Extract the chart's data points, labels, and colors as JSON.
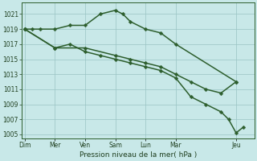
{
  "bg": "#c8e8e8",
  "grid_color": "#99c4c4",
  "lc": "#2d5e2d",
  "xlabel": "Pression niveau de la mer( hPa )",
  "ylim": [
    1004.5,
    1022.5
  ],
  "yticks": [
    1005,
    1007,
    1009,
    1011,
    1013,
    1015,
    1017,
    1019,
    1021
  ],
  "day_labels": [
    "Dim",
    "Mer",
    "Ven",
    "Sam",
    "Lun",
    "Mar",
    "Jeu"
  ],
  "day_x": [
    0,
    2,
    4,
    6,
    8,
    10,
    14
  ],
  "xlim": [
    -0.2,
    15.2
  ],
  "lines": [
    {
      "x": [
        0,
        0.5,
        1,
        2,
        3,
        4,
        5,
        6,
        6.5,
        7,
        8,
        9,
        10,
        14
      ],
      "y": [
        1019,
        1019,
        1019,
        1019,
        1019.5,
        1019.5,
        1021,
        1021.5,
        1021,
        1020,
        1019,
        1018.5,
        1017,
        1012
      ]
    },
    {
      "x": [
        0,
        2,
        4,
        6,
        7,
        8,
        9,
        10,
        11,
        12,
        13,
        14
      ],
      "y": [
        1019,
        1016.5,
        1016.5,
        1015.5,
        1015,
        1014.5,
        1014,
        1013,
        1012,
        1011,
        1010.5,
        1012
      ]
    },
    {
      "x": [
        0,
        2,
        3,
        4,
        5,
        6,
        7,
        8,
        9,
        10,
        11,
        12,
        13,
        13.5,
        14,
        14.5
      ],
      "y": [
        1019,
        1016.5,
        1017,
        1016,
        1015.5,
        1015,
        1014.5,
        1014,
        1013.5,
        1012.5,
        1010,
        1009,
        1008,
        1007,
        1005.2,
        1006
      ]
    }
  ]
}
